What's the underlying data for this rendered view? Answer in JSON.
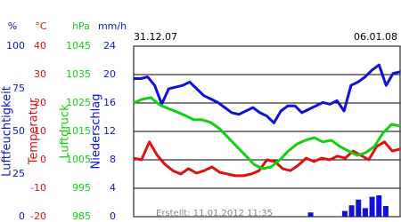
{
  "chart_data": {
    "type": "line",
    "x_labels": [
      "31.12.07",
      "06.01.08"
    ],
    "footer": "Erstellt: 11.01.2012 11:35",
    "grid": true,
    "axes": [
      {
        "unit": "%",
        "label": "Luftfeuchtigkeit",
        "color": "#1010d8",
        "lim": [
          0,
          100
        ],
        "ticks": [
          100,
          75,
          50,
          25,
          0
        ]
      },
      {
        "unit": "°C",
        "label": "Temperatur",
        "color": "#e01010",
        "lim": [
          -20,
          40
        ],
        "ticks": [
          40,
          30,
          20,
          10,
          0,
          -10,
          -20
        ]
      },
      {
        "unit": "hPa",
        "label": "Luftdruck",
        "color": "#10d010",
        "lim": [
          985,
          1045
        ],
        "ticks": [
          1045,
          1035,
          1025,
          1015,
          1005,
          995,
          985
        ]
      },
      {
        "unit": "mm/h",
        "label": "Niederschlag",
        "color": "#1010d8",
        "lim": [
          0,
          24
        ],
        "ticks": [
          24,
          20,
          16,
          12,
          8,
          4,
          0
        ]
      }
    ],
    "series": [
      {
        "axis": 0,
        "type": "line",
        "color": "#1010d8",
        "values": [
          81,
          81,
          82,
          77,
          66,
          75,
          76,
          77,
          79,
          75,
          71,
          69,
          67,
          64,
          61,
          60,
          62,
          64,
          61,
          59,
          55,
          62,
          65,
          65,
          61,
          63,
          65,
          67,
          66,
          68,
          62,
          77,
          79,
          82,
          86,
          89,
          77,
          84,
          85
        ]
      },
      {
        "axis": 1,
        "type": "line",
        "color": "#e01010",
        "values": [
          0.6,
          0,
          6.3,
          1.6,
          -1.6,
          -3.8,
          -5,
          -3.1,
          -4.7,
          -3.8,
          -2.5,
          -4.4,
          -5,
          -5.6,
          -5.6,
          -5,
          -3.8,
          0,
          -0.6,
          -3.1,
          -3.8,
          -1.9,
          0.6,
          -0.6,
          0.6,
          0,
          1.3,
          0.6,
          3.1,
          1.6,
          0,
          4.7,
          6.3,
          3.1,
          3.8
        ]
      },
      {
        "axis": 2,
        "type": "line",
        "color": "#10d010",
        "values": [
          1025,
          1026.3,
          1026.9,
          1024.4,
          1023.1,
          1021.9,
          1020.6,
          1019.1,
          1019.1,
          1018.1,
          1015.9,
          1012.8,
          1009.7,
          1006.6,
          1003.4,
          1001.9,
          1002.5,
          1005,
          1008.1,
          1010.6,
          1011.9,
          1012.8,
          1011.3,
          1011.9,
          1009.7,
          1008.1,
          1006.6,
          1007.5,
          1009.7,
          1014.4,
          1017.5,
          1016.9
        ]
      },
      {
        "axis": 3,
        "type": "bar",
        "color": "#1010d8",
        "values": [
          0,
          0,
          0,
          0,
          0,
          0,
          0,
          0,
          0,
          0,
          0,
          0,
          0,
          0,
          0,
          0,
          0,
          0,
          0,
          0,
          0,
          0,
          0,
          0,
          0,
          0,
          0.6,
          0,
          0,
          0,
          0,
          0.8,
          1.6,
          2.4,
          1.2,
          2.8,
          3,
          1.5,
          0,
          0
        ]
      }
    ]
  }
}
